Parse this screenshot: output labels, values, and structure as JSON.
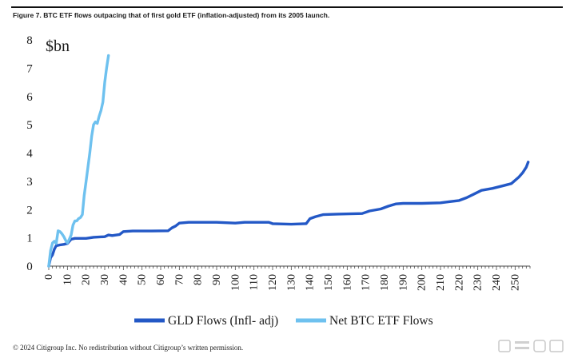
{
  "figure": {
    "caption": "Figure 7. BTC ETF flows outpacing that of first gold ETF (inflation-adjusted) from its 2005 launch.",
    "footer": "© 2024 Citigroup Inc. No redistribution without Citigroup’s written permission."
  },
  "chart_data": {
    "type": "line",
    "title": "",
    "unit_label": "$bn",
    "xlabel": "",
    "ylabel": "",
    "xlim": [
      0,
      258
    ],
    "ylim": [
      0,
      8
    ],
    "x_ticks": [
      0,
      10,
      20,
      30,
      40,
      50,
      60,
      70,
      80,
      90,
      100,
      110,
      120,
      130,
      140,
      150,
      160,
      170,
      180,
      190,
      200,
      210,
      220,
      230,
      240,
      250
    ],
    "y_ticks": [
      0,
      1,
      2,
      3,
      4,
      5,
      6,
      7,
      8
    ],
    "grid": false,
    "legend_position": "bottom",
    "series": [
      {
        "name": "GLD Flows (Infl- adj)",
        "color": "#2358c6",
        "points": [
          [
            0,
            0
          ],
          [
            1,
            0.3
          ],
          [
            2,
            0.4
          ],
          [
            3,
            0.6
          ],
          [
            4,
            0.72
          ],
          [
            6,
            0.75
          ],
          [
            8,
            0.77
          ],
          [
            10,
            0.8
          ],
          [
            12,
            0.95
          ],
          [
            14,
            0.98
          ],
          [
            20,
            0.98
          ],
          [
            24,
            1.02
          ],
          [
            30,
            1.04
          ],
          [
            32,
            1.1
          ],
          [
            34,
            1.08
          ],
          [
            38,
            1.12
          ],
          [
            40,
            1.22
          ],
          [
            45,
            1.24
          ],
          [
            55,
            1.24
          ],
          [
            64,
            1.25
          ],
          [
            66,
            1.35
          ],
          [
            68,
            1.42
          ],
          [
            70,
            1.52
          ],
          [
            75,
            1.55
          ],
          [
            90,
            1.55
          ],
          [
            100,
            1.52
          ],
          [
            105,
            1.55
          ],
          [
            118,
            1.55
          ],
          [
            120,
            1.5
          ],
          [
            130,
            1.48
          ],
          [
            138,
            1.5
          ],
          [
            140,
            1.68
          ],
          [
            143,
            1.75
          ],
          [
            147,
            1.82
          ],
          [
            155,
            1.84
          ],
          [
            168,
            1.86
          ],
          [
            172,
            1.95
          ],
          [
            178,
            2.02
          ],
          [
            182,
            2.12
          ],
          [
            186,
            2.2
          ],
          [
            190,
            2.22
          ],
          [
            200,
            2.22
          ],
          [
            210,
            2.24
          ],
          [
            215,
            2.28
          ],
          [
            220,
            2.32
          ],
          [
            224,
            2.42
          ],
          [
            228,
            2.55
          ],
          [
            232,
            2.68
          ],
          [
            238,
            2.75
          ],
          [
            244,
            2.85
          ],
          [
            248,
            2.92
          ],
          [
            252,
            3.15
          ],
          [
            254,
            3.3
          ],
          [
            256,
            3.5
          ],
          [
            257,
            3.68
          ]
        ]
      },
      {
        "name": "Net BTC ETF Flows",
        "color": "#6ec1ef",
        "points": [
          [
            0,
            0
          ],
          [
            1,
            0.55
          ],
          [
            2,
            0.82
          ],
          [
            3,
            0.88
          ],
          [
            4,
            0.8
          ],
          [
            5,
            1.25
          ],
          [
            6,
            1.22
          ],
          [
            7,
            1.15
          ],
          [
            8,
            1.05
          ],
          [
            9,
            0.92
          ],
          [
            10,
            0.82
          ],
          [
            11,
            0.95
          ],
          [
            12,
            1.1
          ],
          [
            13,
            1.45
          ],
          [
            14,
            1.6
          ],
          [
            15,
            1.6
          ],
          [
            16,
            1.68
          ],
          [
            17,
            1.72
          ],
          [
            18,
            1.82
          ],
          [
            19,
            2.5
          ],
          [
            20,
            3.0
          ],
          [
            21,
            3.5
          ],
          [
            22,
            4.0
          ],
          [
            23,
            4.6
          ],
          [
            24,
            5.0
          ],
          [
            25,
            5.1
          ],
          [
            26,
            5.05
          ],
          [
            27,
            5.3
          ],
          [
            28,
            5.5
          ],
          [
            29,
            5.8
          ],
          [
            30,
            6.5
          ],
          [
            31,
            7.0
          ],
          [
            32,
            7.45
          ]
        ]
      }
    ]
  }
}
